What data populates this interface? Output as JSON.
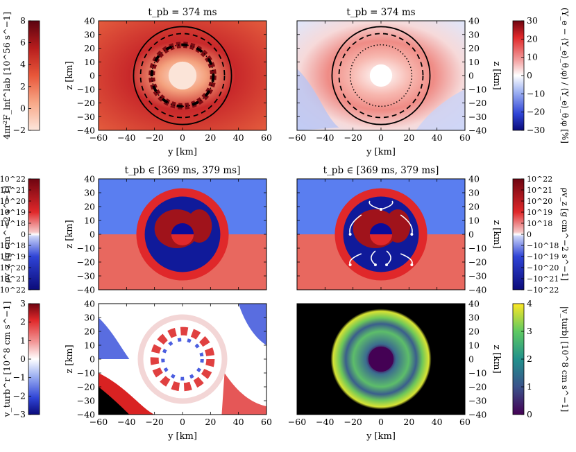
{
  "colors": {
    "cmap_hot": [
      "#fde6dc",
      "#f7a888",
      "#e8573a",
      "#b71d1d",
      "#5a0310"
    ],
    "cmap_rdbu": [
      "#0b0b7a",
      "#2f44d6",
      "#9fb2f2",
      "#ffffff",
      "#f29a9a",
      "#e0282a",
      "#6e0410"
    ],
    "cmap_viridis": [
      "#440154",
      "#3b528b",
      "#21918c",
      "#5ec962",
      "#fde725"
    ]
  },
  "chart_data": [
    {
      "type": "heatmap",
      "panel": "top-left",
      "title": "t_pb = 374 ms",
      "xlabel": "y [km]",
      "ylabel": "z [km]",
      "xlim": [
        -60,
        60
      ],
      "ylim": [
        -40,
        40
      ],
      "xticks": [
        "−60",
        "−40",
        "−20",
        "0",
        "20",
        "40",
        "60"
      ],
      "yticks": [
        "40",
        "30",
        "20",
        "10",
        "0",
        "−10",
        "−20",
        "−30",
        "−40"
      ],
      "colorbar_label": "4πr²F_lnf^lab [10^56 s^−1]",
      "colorbar_ticks": [
        "8",
        "6",
        "4",
        "2",
        "0",
        "−2"
      ],
      "colorbar_range": [
        -2,
        8
      ],
      "colormap": "hot-red"
    },
    {
      "type": "heatmap",
      "panel": "top-right",
      "title": "t_pb = 374 ms",
      "xlabel": "y [km]",
      "ylabel": "z [km]",
      "xlim": [
        -60,
        60
      ],
      "ylim": [
        -40,
        40
      ],
      "xticks": [
        "−60",
        "−40",
        "−20",
        "0",
        "20",
        "40",
        "60"
      ],
      "yticks": [
        "40",
        "30",
        "20",
        "10",
        "0",
        "−10",
        "−20",
        "−30",
        "−40"
      ],
      "colorbar_label": "(Y_e − ⟨Y_e⟩_θ,φ) / ⟨Y_e⟩_θ,φ [%]",
      "colorbar_ticks": [
        "30",
        "20",
        "10",
        "0",
        "−10",
        "−20",
        "−30"
      ],
      "colorbar_range": [
        -30,
        30
      ],
      "colormap": "blue-white-red"
    },
    {
      "type": "heatmap",
      "panel": "middle-left",
      "title": "t_pb ∈ [369 ms, 379 ms]",
      "xlabel": "",
      "ylabel": "z [km]",
      "xlim": [
        -60,
        60
      ],
      "ylim": [
        -40,
        40
      ],
      "yticks": [
        "40",
        "30",
        "20",
        "10",
        "0",
        "−10",
        "−20",
        "−30",
        "−40"
      ],
      "colorbar_label": "ρv_z [g cm^−2 s^−1]",
      "colorbar_ticks": [
        "10^22",
        "10^21",
        "10^20",
        "10^19",
        "10^18",
        "0",
        "−10^18",
        "−10^19",
        "−10^20",
        "−10^21",
        "−10^22"
      ],
      "colormap": "blue-white-red (symlog)"
    },
    {
      "type": "heatmap",
      "panel": "middle-right",
      "title": "t_pb ∈ [369 ms, 379 ms]",
      "xlabel": "",
      "ylabel": "z [km]",
      "xlim": [
        -60,
        60
      ],
      "ylim": [
        -40,
        40
      ],
      "yticks": [
        "40",
        "30",
        "20",
        "10",
        "0",
        "−10",
        "−20",
        "−30",
        "−40"
      ],
      "colorbar_label": "ρv_z [g cm^−2 s^−1]",
      "colorbar_ticks": [
        "10^22",
        "10^21",
        "10^20",
        "10^19",
        "10^18",
        "0",
        "−10^18",
        "−10^19",
        "−10^20",
        "−10^21",
        "−10^22"
      ],
      "colormap": "blue-white-red (symlog)"
    },
    {
      "type": "heatmap",
      "panel": "bottom-left",
      "title": "",
      "xlabel": "y [km]",
      "ylabel": "z [km]",
      "xlim": [
        -60,
        60
      ],
      "ylim": [
        -40,
        40
      ],
      "xticks": [
        "−60",
        "−40",
        "−20",
        "0",
        "20",
        "40",
        "60"
      ],
      "yticks": [
        "40",
        "30",
        "20",
        "10",
        "0",
        "−10",
        "−20",
        "−30",
        "−40"
      ],
      "colorbar_label": "v_turb^r [10^8 cm s^−1]",
      "colorbar_ticks": [
        "3",
        "2",
        "1",
        "0",
        "−1",
        "−2",
        "−3"
      ],
      "colorbar_range": [
        -3,
        3
      ],
      "colormap": "blue-white-red"
    },
    {
      "type": "heatmap",
      "panel": "bottom-right",
      "title": "",
      "xlabel": "y [km]",
      "ylabel": "z [km]",
      "xlim": [
        -60,
        60
      ],
      "ylim": [
        -40,
        40
      ],
      "xticks": [
        "−60",
        "−40",
        "−20",
        "0",
        "20",
        "40",
        "60"
      ],
      "yticks": [
        "40",
        "30",
        "20",
        "10",
        "0",
        "−10",
        "−20",
        "−30",
        "−40"
      ],
      "colorbar_label": "|v_turb| [10^8 cm s^−1]",
      "colorbar_ticks": [
        "4",
        "3",
        "2",
        "1",
        "0"
      ],
      "colorbar_range": [
        0,
        4
      ],
      "colormap": "viridis"
    }
  ]
}
